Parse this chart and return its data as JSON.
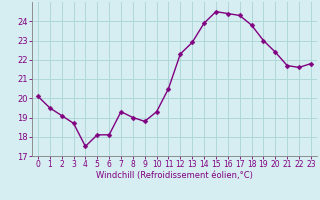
{
  "hours": [
    0,
    1,
    2,
    3,
    4,
    5,
    6,
    7,
    8,
    9,
    10,
    11,
    12,
    13,
    14,
    15,
    16,
    17,
    18,
    19,
    20,
    21,
    22,
    23
  ],
  "values": [
    20.1,
    19.5,
    19.1,
    18.7,
    17.5,
    18.1,
    18.1,
    19.3,
    19.0,
    18.8,
    19.3,
    20.5,
    22.3,
    22.9,
    23.9,
    24.5,
    24.4,
    24.3,
    23.8,
    23.0,
    22.4,
    21.7,
    21.6,
    21.8
  ],
  "line_color": "#800080",
  "marker": "D",
  "marker_size": 2.5,
  "bg_color": "#d6eef2",
  "grid_color": "#b0d8d8",
  "xlabel": "Windchill (Refroidissement éolien,°C)",
  "ylim": [
    17,
    25
  ],
  "yticks": [
    17,
    18,
    19,
    20,
    21,
    22,
    23,
    24
  ],
  "xlim": [
    -0.5,
    23.5
  ],
  "xticks": [
    0,
    1,
    2,
    3,
    4,
    5,
    6,
    7,
    8,
    9,
    10,
    11,
    12,
    13,
    14,
    15,
    16,
    17,
    18,
    19,
    20,
    21,
    22,
    23
  ],
  "tick_color": "#800080",
  "label_color": "#800080",
  "spine_color": "#808080",
  "linewidth": 1.0,
  "xlabel_fontsize": 6.0,
  "tick_fontsize": 5.5
}
